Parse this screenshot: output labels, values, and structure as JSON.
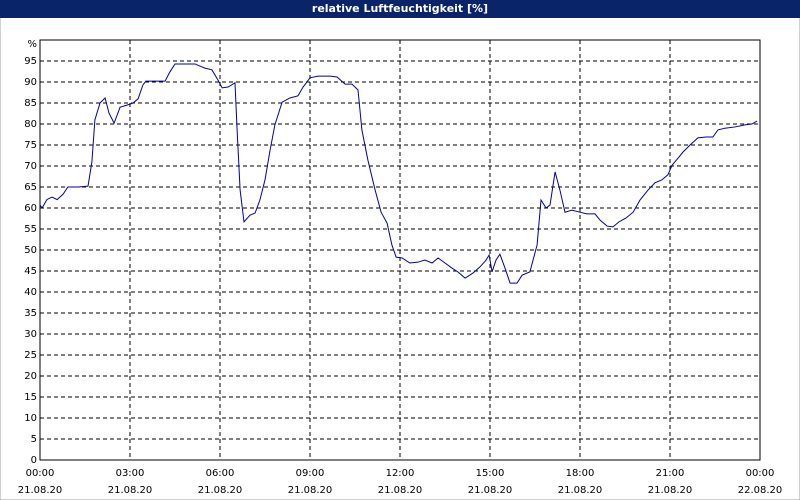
{
  "chart_data": {
    "type": "line",
    "title": "relative Luftfeuchtigkeit [%]",
    "y_label": "%",
    "xlim": [
      0,
      24
    ],
    "ylim": [
      0,
      100
    ],
    "xticks": [
      {
        "value": 0,
        "label": "00:00"
      },
      {
        "value": 3,
        "label": "03:00"
      },
      {
        "value": 6,
        "label": "06:00"
      },
      {
        "value": 9,
        "label": "09:00"
      },
      {
        "value": 12,
        "label": "12:00"
      },
      {
        "value": 15,
        "label": "15:00"
      },
      {
        "value": 18,
        "label": "18:00"
      },
      {
        "value": 21,
        "label": "21:00"
      },
      {
        "value": 24,
        "label": "00:00"
      }
    ],
    "xtick_dates": [
      "21.08.20",
      "21.08.20",
      "21.08.20",
      "21.08.20",
      "21.08.20",
      "21.08.20",
      "21.08.20",
      "21.08.20",
      "22.08.20"
    ],
    "yticks": [
      0,
      5,
      10,
      15,
      20,
      25,
      30,
      35,
      40,
      45,
      50,
      55,
      60,
      65,
      70,
      75,
      80,
      85,
      90,
      95
    ],
    "grid": true,
    "series": [
      {
        "color": "#0000a0",
        "x": [
          0,
          0.07,
          0.23,
          0.4,
          0.57,
          0.77,
          0.93,
          1.27,
          1.6,
          1.73,
          1.83,
          2,
          2.17,
          2.3,
          2.47,
          2.67,
          2.9,
          3.1,
          3.27,
          3.43,
          3.53,
          3.9,
          4.17,
          4.33,
          4.5,
          4.83,
          5.17,
          5.33,
          5.5,
          5.73,
          5.93,
          6.07,
          6.27,
          6.5,
          6.57,
          6.67,
          6.8,
          7,
          7.17,
          7.33,
          7.5,
          7.67,
          7.83,
          8.07,
          8.33,
          8.6,
          8.77,
          9,
          9.27,
          9.67,
          9.9,
          10.17,
          10.4,
          10.6,
          10.73,
          10.93,
          11.17,
          11.37,
          11.57,
          11.73,
          11.87,
          12.07,
          12.33,
          12.6,
          12.83,
          13.07,
          13.27,
          13.5,
          13.73,
          13.93,
          14.17,
          14.43,
          14.67,
          14.87,
          14.97,
          15.07,
          15.2,
          15.33,
          15.5,
          15.67,
          15.9,
          16.07,
          16.33,
          16.57,
          16.7,
          16.87,
          17,
          17.17,
          17.33,
          17.5,
          17.73,
          18,
          18.23,
          18.5,
          18.67,
          18.9,
          19.1,
          19.3,
          19.53,
          19.77,
          20,
          20.27,
          20.5,
          20.73,
          20.93,
          21.07,
          21.27,
          21.43,
          21.67,
          21.93,
          22.2,
          22.43,
          22.6,
          22.83,
          23.17,
          23.5,
          23.73,
          23.9
        ],
        "values": [
          60.7,
          60,
          62,
          62.6,
          62,
          63.3,
          65,
          65,
          65.2,
          71,
          81,
          85,
          86.2,
          82.6,
          80.2,
          84,
          84.5,
          85,
          86,
          89.3,
          90.2,
          90.2,
          90.2,
          92.4,
          94.3,
          94.3,
          94.3,
          93.8,
          93.3,
          92.9,
          90.5,
          88.6,
          88.8,
          89.8,
          78.6,
          64.3,
          56.7,
          58.3,
          58.8,
          61.9,
          66.7,
          73.8,
          79.8,
          85.2,
          86.2,
          86.7,
          88.8,
          91,
          91.4,
          91.4,
          91.2,
          89.5,
          89.5,
          88.1,
          78.6,
          71.4,
          64.3,
          59,
          56.4,
          51.2,
          48.3,
          48.1,
          46.9,
          47.1,
          47.6,
          46.9,
          48.1,
          46.9,
          45.7,
          44.8,
          43.3,
          44.5,
          46,
          47.6,
          48.8,
          44.8,
          47.6,
          49,
          45.7,
          42.1,
          42.1,
          44,
          44.8,
          51.2,
          61.9,
          60,
          60.7,
          68.6,
          64.3,
          59,
          59.5,
          59,
          58.6,
          58.6,
          57.1,
          55.7,
          55.5,
          56.7,
          57.6,
          59,
          61.9,
          64.3,
          66,
          66.7,
          67.9,
          70.2,
          71.9,
          73.3,
          75,
          76.7,
          76.9,
          76.9,
          78.6,
          79,
          79.3,
          79.8,
          80,
          80.7
        ]
      }
    ]
  }
}
